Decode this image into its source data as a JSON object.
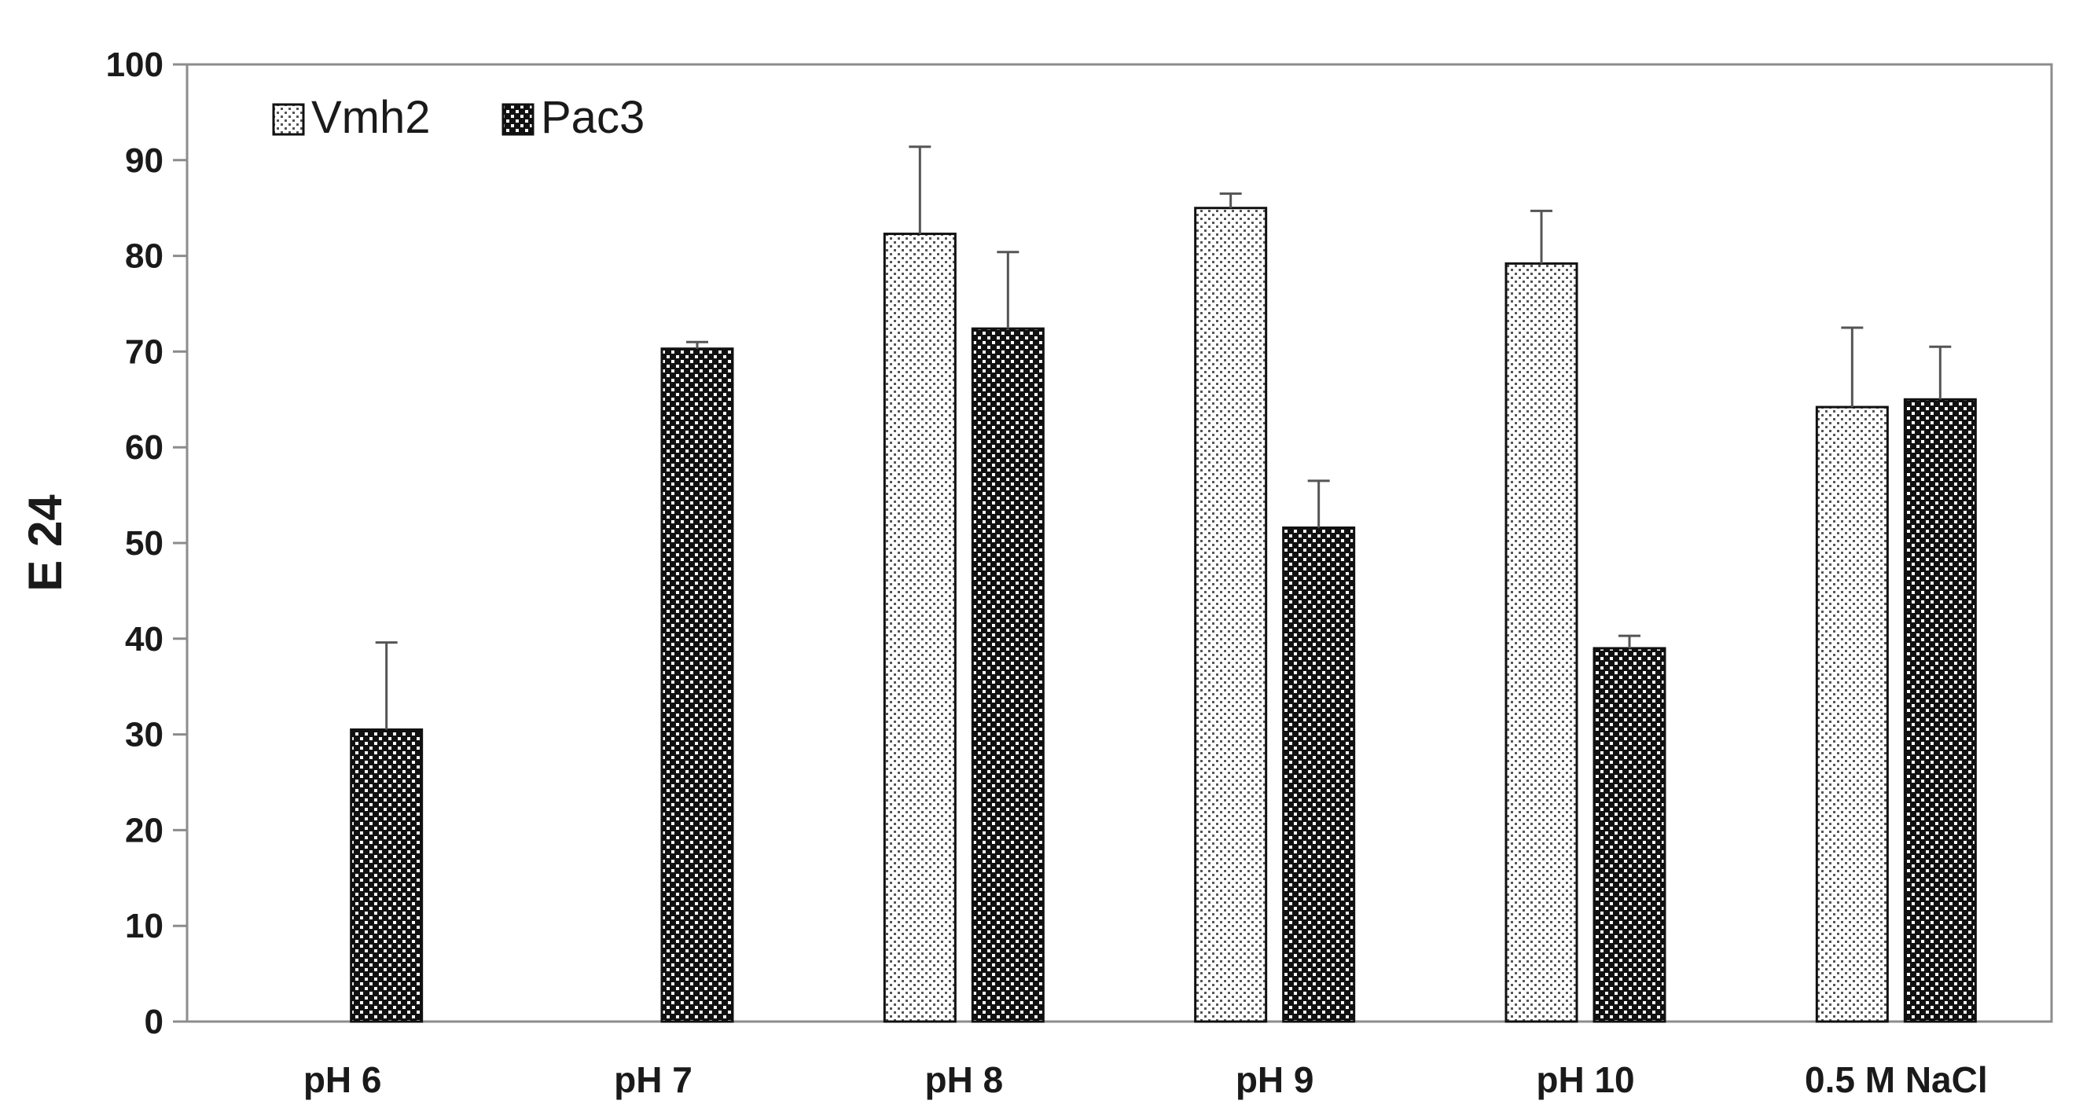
{
  "chart_data": {
    "type": "bar",
    "title": "",
    "xlabel": "",
    "ylabel": "E 24",
    "ylim": [
      0,
      100
    ],
    "yticks": [
      0,
      10,
      20,
      30,
      40,
      50,
      60,
      70,
      80,
      90,
      100
    ],
    "grid": false,
    "legend_position": "top-left",
    "categories": [
      "pH 6",
      "pH 7",
      "pH 8",
      "pH 9",
      "pH 10",
      "0.5 M NaCl"
    ],
    "series": [
      {
        "name": "Vmh2",
        "pattern": "light-dotted",
        "color": "#ffffff",
        "values": [
          null,
          null,
          82.3,
          85.0,
          79.2,
          64.2
        ],
        "errors": [
          null,
          null,
          9.1,
          1.5,
          5.5,
          8.3
        ]
      },
      {
        "name": "Pac3",
        "pattern": "dark-dotted",
        "color": "#1a1a1a",
        "values": [
          30.5,
          70.3,
          72.4,
          51.6,
          39.0,
          65.0
        ],
        "errors": [
          9.1,
          0.7,
          8.0,
          4.9,
          1.3,
          5.5
        ]
      }
    ]
  }
}
